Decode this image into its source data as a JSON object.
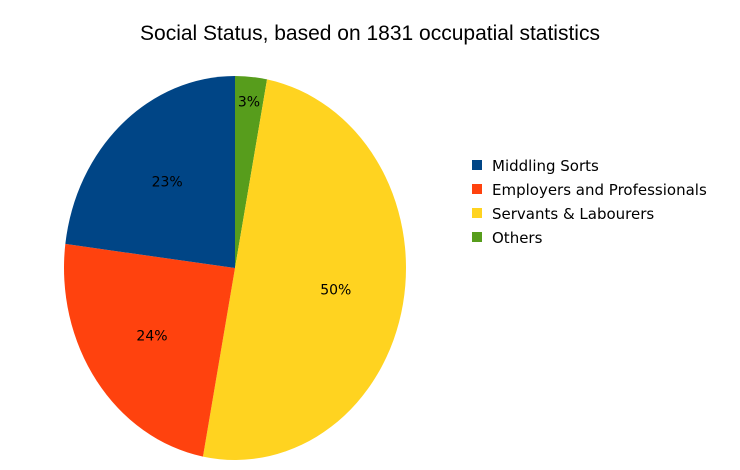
{
  "chart_data": {
    "type": "pie",
    "title": "Social Status, based on 1831 occupatial statistics",
    "categories": [
      "Middling Sorts",
      "Employers and Professionals",
      "Servants & Labourers",
      "Others"
    ],
    "values": [
      23,
      24,
      50,
      3
    ],
    "data_labels": [
      "23%",
      "24%",
      "50%",
      "3%"
    ],
    "colors": [
      "#004586",
      "#ff420e",
      "#ffd320",
      "#579d1c"
    ],
    "legend": {
      "position": "right",
      "entries": [
        {
          "label": "Middling Sorts",
          "color": "#004586"
        },
        {
          "label": "Employers and Professionals",
          "color": "#ff420e"
        },
        {
          "label": "Servants & Labourers",
          "color": "#ffd320"
        },
        {
          "label": "Others",
          "color": "#579d1c"
        }
      ]
    }
  }
}
